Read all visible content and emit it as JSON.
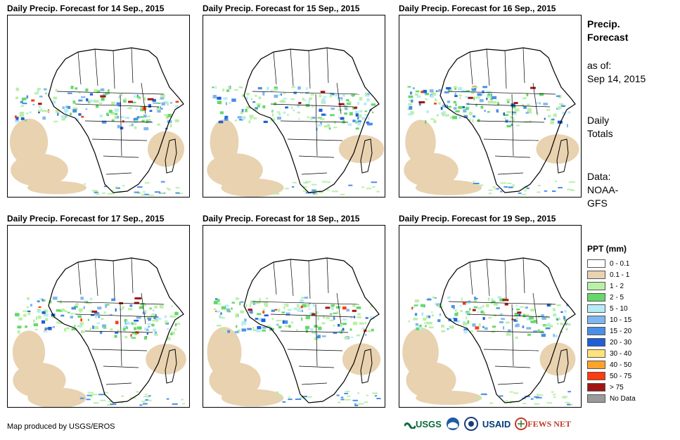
{
  "panels": [
    {
      "title": "Daily Precip. Forecast for 14 Sep., 2015"
    },
    {
      "title": "Daily Precip. Forecast for 15 Sep., 2015"
    },
    {
      "title": "Daily Precip. Forecast for 16 Sep., 2015"
    },
    {
      "title": "Daily Precip. Forecast for 17 Sep., 2015"
    },
    {
      "title": "Daily Precip. Forecast for 18 Sep., 2015"
    },
    {
      "title": "Daily Precip. Forecast for 19 Sep., 2015"
    }
  ],
  "side": {
    "title_line1": "Precip.",
    "title_line2": "Forecast",
    "asof_label": "as of:",
    "asof_date": "Sep 14, 2015",
    "daily_line1": "Daily",
    "daily_line2": "Totals",
    "data_line1": "Data:",
    "data_line2": "NOAA-",
    "data_line3": "GFS"
  },
  "legend": {
    "title": "PPT (mm)",
    "items": [
      {
        "label": "0 - 0.1",
        "color": "#ffffff"
      },
      {
        "label": "0.1 - 1",
        "color": "#e8d2b0"
      },
      {
        "label": "1 - 2",
        "color": "#b9f0a8"
      },
      {
        "label": "2 - 5",
        "color": "#66d86a"
      },
      {
        "label": "5 - 10",
        "color": "#b7ecf7"
      },
      {
        "label": "10 - 15",
        "color": "#7fb7ee"
      },
      {
        "label": "15 - 20",
        "color": "#4a8fe6"
      },
      {
        "label": "20 - 30",
        "color": "#1f5ed6"
      },
      {
        "label": "30 - 40",
        "color": "#ffe27a"
      },
      {
        "label": "40 - 50",
        "color": "#ffa32a"
      },
      {
        "label": "50 - 75",
        "color": "#ff3b10"
      },
      {
        "label": "> 75",
        "color": "#a31515"
      },
      {
        "label": "No Data",
        "color": "#9a9a9a"
      }
    ]
  },
  "footer": {
    "credit": "Map produced by USGS/EROS"
  },
  "logos": {
    "usgs": "USGS",
    "usaid": "USAID",
    "fewsnet": "FEWS NET"
  }
}
